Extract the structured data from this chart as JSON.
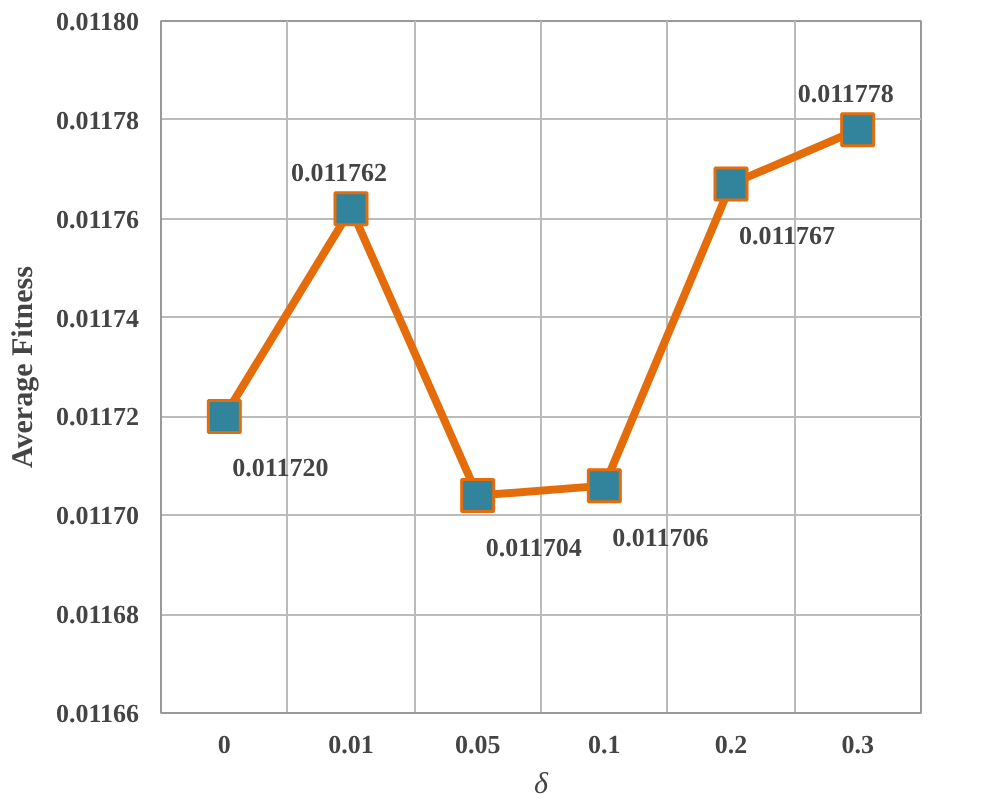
{
  "chart_data": {
    "type": "line",
    "xlabel": "δ",
    "ylabel": "Average Fitness",
    "categories": [
      "0",
      "0.01",
      "0.05",
      "0.1",
      "0.2",
      "0.3"
    ],
    "series": [
      {
        "color": "#e46c0a",
        "colors": [
          "#31849b",
          "#31849b",
          "#31849b",
          "#31849b",
          "#31849b",
          "#31849b"
        ],
        "values": [
          0.01172,
          0.011762,
          0.011704,
          0.011706,
          0.011767,
          0.011778
        ],
        "value_labels": [
          "0.011720",
          "0.011762",
          "0.011704",
          "0.011706",
          "0.011767",
          "0.011778"
        ]
      }
    ],
    "ylim": [
      0.01166,
      0.0118
    ],
    "yticks": [
      {
        "value": 0.01166,
        "label": "0.01166"
      },
      {
        "value": 0.01168,
        "label": "0.01168"
      },
      {
        "value": 0.0117,
        "label": "0.01170"
      },
      {
        "value": 0.01172,
        "label": "0.01172"
      },
      {
        "value": 0.01174,
        "label": "0.01174"
      },
      {
        "value": 0.01176,
        "label": "0.01176"
      },
      {
        "value": 0.01178,
        "label": "0.01178"
      },
      {
        "value": 0.0118,
        "label": "0.01180"
      }
    ],
    "grid": true,
    "marker": "square",
    "line_style": "solid"
  }
}
